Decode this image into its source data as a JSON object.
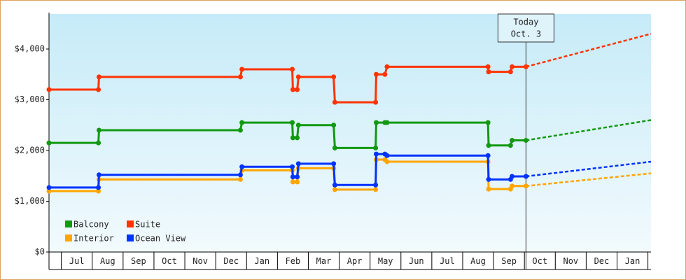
{
  "chart_data": {
    "type": "line",
    "xlim": [
      -0.4,
      19.1
    ],
    "xticks": [
      {
        "value": 0.5,
        "label": "Jul"
      },
      {
        "value": 1.5,
        "label": "Aug"
      },
      {
        "value": 2.5,
        "label": "Sep"
      },
      {
        "value": 3.5,
        "label": "Oct"
      },
      {
        "value": 4.5,
        "label": "Nov"
      },
      {
        "value": 5.5,
        "label": "Dec"
      },
      {
        "value": 6.5,
        "label": "Jan"
      },
      {
        "value": 7.5,
        "label": "Feb"
      },
      {
        "value": 8.5,
        "label": "Mar"
      },
      {
        "value": 9.5,
        "label": "Apr"
      },
      {
        "value": 10.5,
        "label": "May"
      },
      {
        "value": 11.5,
        "label": "Jun"
      },
      {
        "value": 12.5,
        "label": "Jul"
      },
      {
        "value": 13.5,
        "label": "Aug"
      },
      {
        "value": 14.5,
        "label": "Sep"
      },
      {
        "value": 15.5,
        "label": "Oct"
      },
      {
        "value": 16.5,
        "label": "Nov"
      },
      {
        "value": 17.5,
        "label": "Dec"
      },
      {
        "value": 18.5,
        "label": "Jan"
      }
    ],
    "ylim": [
      0,
      4690
    ],
    "yticks": [
      {
        "value": 0,
        "label": "$0"
      },
      {
        "value": 1000,
        "label": "$1,000"
      },
      {
        "value": 2000,
        "label": "$2,000"
      },
      {
        "value": 3000,
        "label": "$3,000"
      },
      {
        "value": 4000,
        "label": "$4,000"
      }
    ],
    "x": [
      -0.4,
      1.2,
      1.22,
      5.8,
      5.85,
      7.48,
      7.5,
      7.64,
      7.68,
      8.82,
      8.86,
      10.18,
      10.2,
      10.48,
      10.55,
      13.82,
      13.84,
      14.55,
      14.6,
      15.05
    ],
    "forecast_x": [
      15.05,
      19.1
    ],
    "series": [
      {
        "name": "Balcony",
        "color": "#119911",
        "values": [
          2150,
          2150,
          2400,
          2400,
          2550,
          2550,
          2250,
          2250,
          2500,
          2500,
          2050,
          2050,
          2550,
          2550,
          2550,
          2550,
          2100,
          2100,
          2200,
          2200
        ],
        "forecast": [
          2200,
          2600
        ]
      },
      {
        "name": "Suite",
        "color": "#ff3300",
        "values": [
          3200,
          3200,
          3450,
          3450,
          3600,
          3600,
          3200,
          3200,
          3450,
          3450,
          2950,
          2950,
          3500,
          3500,
          3650,
          3650,
          3550,
          3550,
          3650,
          3650
        ],
        "forecast": [
          3650,
          4300
        ]
      },
      {
        "name": "Interior",
        "color": "#ffa500",
        "values": [
          1200,
          1200,
          1430,
          1430,
          1610,
          1610,
          1380,
          1380,
          1650,
          1650,
          1230,
          1230,
          1820,
          1820,
          1780,
          1780,
          1240,
          1240,
          1300,
          1300
        ],
        "forecast": [
          1300,
          1550
        ]
      },
      {
        "name": "Ocean View",
        "color": "#0033ff",
        "values": [
          1270,
          1270,
          1520,
          1520,
          1680,
          1680,
          1480,
          1480,
          1740,
          1740,
          1320,
          1320,
          1930,
          1930,
          1900,
          1900,
          1430,
          1430,
          1490,
          1490
        ],
        "forecast": [
          1490,
          1780
        ]
      }
    ],
    "annotation": {
      "x": 15.05,
      "lines": [
        "Today",
        "Oct. 3"
      ]
    },
    "legend": "lower left"
  }
}
